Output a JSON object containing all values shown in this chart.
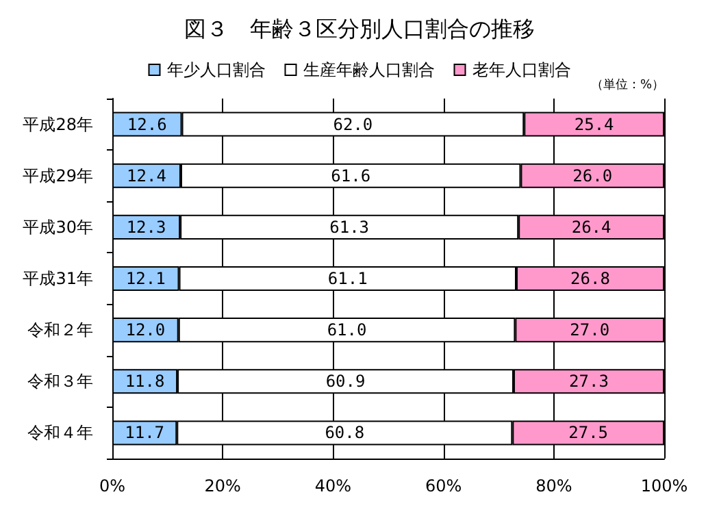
{
  "chart_data": {
    "type": "bar",
    "title": "図３　年齢３区分別人口割合の推移",
    "orientation": "horizontal",
    "stacked": true,
    "categories": [
      "平成28年",
      "平成29年",
      "平成30年",
      "平成31年",
      "令和２年",
      "令和３年",
      "令和４年"
    ],
    "series": [
      {
        "name": "年少人口割合",
        "color": "#99ccff",
        "values": [
          12.6,
          12.4,
          12.3,
          12.1,
          12.0,
          11.8,
          11.7
        ],
        "value_labels": [
          "12.6",
          "12.4",
          "12.3",
          "12.1",
          "12.0",
          "11.8",
          "11.7"
        ]
      },
      {
        "name": "生産年齢人口割合",
        "color": "#ffffff",
        "values": [
          62.0,
          61.6,
          61.3,
          61.1,
          61.0,
          60.9,
          60.8
        ],
        "value_labels": [
          "62.0",
          "61.6",
          "61.3",
          "61.1",
          "61.0",
          "60.9",
          "60.8"
        ]
      },
      {
        "name": "老年人口割合",
        "color": "#ff99cc",
        "values": [
          25.4,
          26.0,
          26.4,
          26.8,
          27.0,
          27.3,
          27.5
        ],
        "value_labels": [
          "25.4",
          "26.0",
          "26.4",
          "26.8",
          "27.0",
          "27.3",
          "27.5"
        ]
      }
    ],
    "xlim": [
      0,
      100
    ],
    "xticks": [
      {
        "value": 0,
        "label": "0%"
      },
      {
        "value": 20,
        "label": "20%"
      },
      {
        "value": 40,
        "label": "40%"
      },
      {
        "value": 60,
        "label": "60%"
      },
      {
        "value": 80,
        "label": "80%"
      },
      {
        "value": 100,
        "label": "100%"
      }
    ],
    "grid": "x",
    "legend": "top",
    "annotations": [
      "（単位：%）"
    ]
  }
}
